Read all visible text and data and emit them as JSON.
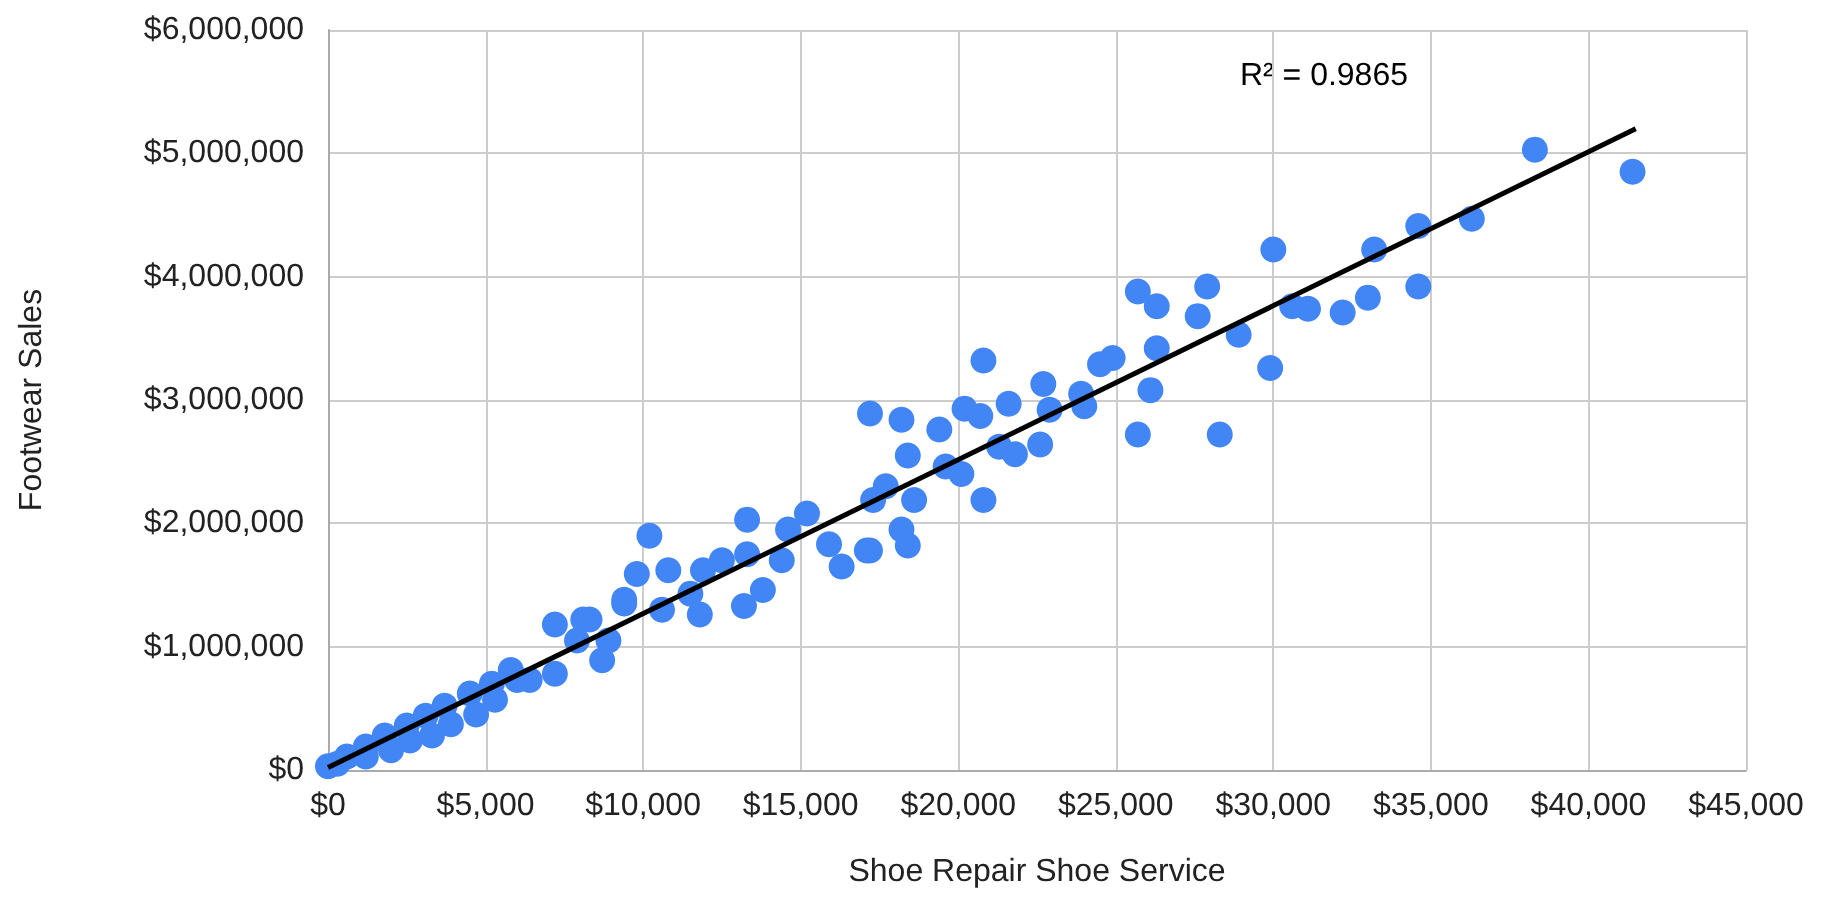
{
  "chart_data": {
    "type": "scatter",
    "xlabel": "Shoe Repair Shoe Service",
    "ylabel": "Footwear Sales",
    "annotations": [
      "R² = 0.9865"
    ],
    "grid": true,
    "xlim": [
      0,
      45000
    ],
    "ylim": [
      0,
      6000000
    ],
    "xticks": [
      {
        "value": 0,
        "label": "$0"
      },
      {
        "value": 5000,
        "label": "$5,000"
      },
      {
        "value": 10000,
        "label": "$10,000"
      },
      {
        "value": 15000,
        "label": "$15,000"
      },
      {
        "value": 20000,
        "label": "$20,000"
      },
      {
        "value": 25000,
        "label": "$25,000"
      },
      {
        "value": 30000,
        "label": "$30,000"
      },
      {
        "value": 35000,
        "label": "$35,000"
      },
      {
        "value": 40000,
        "label": "$40,000"
      },
      {
        "value": 45000,
        "label": "$45,000"
      }
    ],
    "yticks": [
      {
        "value": 0,
        "label": "$0"
      },
      {
        "value": 1000000,
        "label": "$1,000,000"
      },
      {
        "value": 2000000,
        "label": "$2,000,000"
      },
      {
        "value": 3000000,
        "label": "$3,000,000"
      },
      {
        "value": 4000000,
        "label": "$4,000,000"
      },
      {
        "value": 5000000,
        "label": "$5,000,000"
      },
      {
        "value": 6000000,
        "label": "$6,000,000"
      }
    ],
    "series": [
      {
        "marker": "circle",
        "color": "#4285f4",
        "x": [
          38300,
          41400,
          36300,
          34600,
          33200,
          30000,
          34600,
          33000,
          32200,
          31100,
          30600,
          28900,
          27900,
          27600,
          26300,
          25700,
          26300,
          29900,
          26100,
          24900,
          24500,
          25700,
          28300,
          24000,
          20800,
          17200,
          18200,
          22700,
          21600,
          20200,
          23900,
          18400,
          19400,
          20700,
          22600,
          21300,
          19600,
          20800,
          18600,
          17300,
          18200,
          17100,
          17700,
          20100,
          21800,
          22900,
          10200,
          13300,
          9800,
          10800,
          12500,
          11900,
          11500,
          11800,
          10600,
          13200,
          13800,
          14600,
          15200,
          16300,
          17200,
          15900,
          18400,
          8300,
          9400,
          8900,
          7900,
          13300,
          14400,
          0,
          600,
          1200,
          1800,
          2500,
          3100,
          3700,
          4500,
          5200,
          5800,
          4700,
          3300,
          2000,
          7200,
          7200,
          8700,
          8100,
          6400,
          1200,
          2600,
          3900,
          5300,
          6000,
          9400,
          300
        ],
        "values": [
          5030000,
          4850000,
          4470000,
          4410000,
          4220000,
          4220000,
          3920000,
          3830000,
          3710000,
          3740000,
          3760000,
          3530000,
          3920000,
          3680000,
          3760000,
          3880000,
          3420000,
          3260000,
          3080000,
          3340000,
          3290000,
          2720000,
          2720000,
          2950000,
          3320000,
          2890000,
          2840000,
          3130000,
          2970000,
          2930000,
          3050000,
          2550000,
          2760000,
          2870000,
          2640000,
          2620000,
          2460000,
          2190000,
          2190000,
          2190000,
          1950000,
          1780000,
          2300000,
          2400000,
          2560000,
          2920000,
          1900000,
          2030000,
          1590000,
          1620000,
          1700000,
          1620000,
          1430000,
          1260000,
          1300000,
          1330000,
          1460000,
          1950000,
          2080000,
          1650000,
          1780000,
          1830000,
          1820000,
          1220000,
          1350000,
          1050000,
          1050000,
          1750000,
          1700000,
          30000,
          110000,
          190000,
          280000,
          360000,
          440000,
          520000,
          620000,
          700000,
          810000,
          450000,
          280000,
          160000,
          1180000,
          780000,
          890000,
          1220000,
          730000,
          110000,
          240000,
          370000,
          570000,
          730000,
          1380000,
          50000
        ]
      },
      {
        "type": "line",
        "color": "#000000",
        "x": [
          0,
          41500
        ],
        "values": [
          20000,
          5200000
        ]
      }
    ]
  }
}
